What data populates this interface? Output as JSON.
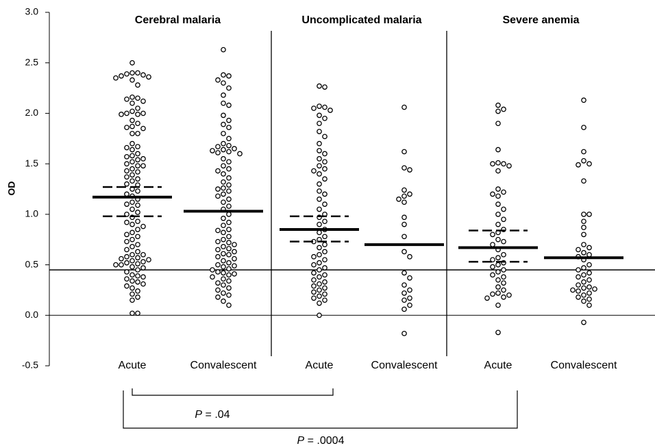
{
  "chart_data": {
    "type": "dot",
    "y_label": "OD",
    "ylim": [
      -0.5,
      3.0
    ],
    "yticks": [
      -0.5,
      {
        "value": 0,
        "label": "0.0"
      },
      0.5,
      {
        "value": 1,
        "label": "1.0"
      },
      1.5,
      {
        "value": 2,
        "label": "2.0"
      },
      2.5,
      {
        "value": 3,
        "label": "3.0"
      }
    ],
    "reference_line": 0.45,
    "panels": [
      {
        "title": "Cerebral malaria",
        "groups": [
          {
            "category": "Acute",
            "center": 1.17,
            "interval": [
              0.98,
              1.27
            ],
            "values": [
              2.5,
              2.4,
              2.4,
              2.39,
              2.38,
              2.37,
              2.36,
              2.35,
              2.33,
              2.28,
              2.16,
              2.15,
              2.14,
              2.12,
              2.1,
              2.05,
              2.02,
              2.0,
              2.0,
              1.99,
              1.99,
              1.93,
              1.9,
              1.87,
              1.86,
              1.85,
              1.8,
              1.8,
              1.7,
              1.67,
              1.66,
              1.64,
              1.6,
              1.58,
              1.57,
              1.55,
              1.54,
              1.52,
              1.5,
              1.48,
              1.48,
              1.45,
              1.43,
              1.42,
              1.39,
              1.37,
              1.35,
              1.33,
              1.3,
              1.29,
              1.25,
              1.23,
              1.2,
              1.18,
              1.15,
              1.12,
              1.1,
              1.09,
              1.05,
              1.02,
              1.0,
              0.97,
              0.93,
              0.92,
              0.9,
              0.88,
              0.85,
              0.82,
              0.8,
              0.78,
              0.75,
              0.73,
              0.7,
              0.68,
              0.65,
              0.63,
              0.6,
              0.6,
              0.58,
              0.57,
              0.56,
              0.55,
              0.54,
              0.53,
              0.52,
              0.51,
              0.5,
              0.5,
              0.48,
              0.47,
              0.45,
              0.43,
              0.4,
              0.39,
              0.38,
              0.36,
              0.34,
              0.33,
              0.31,
              0.29,
              0.27,
              0.24,
              0.21,
              0.18,
              0.15,
              0.02,
              0.02
            ]
          },
          {
            "category": "Convalescent",
            "center": 1.03,
            "values": [
              2.63,
              2.38,
              2.37,
              2.33,
              2.3,
              2.25,
              2.18,
              2.1,
              2.08,
              1.98,
              1.93,
              1.89,
              1.86,
              1.8,
              1.75,
              1.7,
              1.68,
              1.67,
              1.65,
              1.64,
              1.63,
              1.62,
              1.61,
              1.6,
              1.55,
              1.52,
              1.48,
              1.45,
              1.43,
              1.4,
              1.36,
              1.32,
              1.29,
              1.26,
              1.25,
              1.23,
              1.2,
              1.18,
              1.15,
              1.12,
              1.08,
              1.05,
              1.0,
              0.96,
              0.92,
              0.89,
              0.85,
              0.84,
              0.82,
              0.78,
              0.75,
              0.73,
              0.72,
              0.7,
              0.68,
              0.66,
              0.65,
              0.63,
              0.61,
              0.6,
              0.58,
              0.56,
              0.54,
              0.52,
              0.5,
              0.49,
              0.48,
              0.46,
              0.45,
              0.43,
              0.42,
              0.41,
              0.4,
              0.38,
              0.36,
              0.34,
              0.32,
              0.3,
              0.27,
              0.25,
              0.22,
              0.2,
              0.18,
              0.14,
              0.1
            ]
          }
        ]
      },
      {
        "title": "Uncomplicated malaria",
        "groups": [
          {
            "category": "Acute",
            "center": 0.85,
            "interval": [
              0.73,
              0.98
            ],
            "values": [
              2.27,
              2.26,
              2.07,
              2.06,
              2.05,
              2.03,
              1.98,
              1.95,
              1.9,
              1.82,
              1.77,
              1.7,
              1.63,
              1.6,
              1.55,
              1.52,
              1.48,
              1.45,
              1.43,
              1.4,
              1.35,
              1.3,
              1.23,
              1.2,
              1.15,
              1.1,
              1.05,
              1.0,
              0.97,
              0.93,
              0.9,
              0.85,
              0.82,
              0.78,
              0.75,
              0.73,
              0.7,
              0.67,
              0.63,
              0.6,
              0.58,
              0.55,
              0.52,
              0.5,
              0.47,
              0.45,
              0.42,
              0.4,
              0.38,
              0.35,
              0.33,
              0.31,
              0.29,
              0.27,
              0.25,
              0.23,
              0.21,
              0.19,
              0.17,
              0.15,
              0.12,
              0.0
            ]
          },
          {
            "category": "Convalescent",
            "center": 0.7,
            "values": [
              2.06,
              1.62,
              1.46,
              1.44,
              1.24,
              1.2,
              1.18,
              1.15,
              1.12,
              0.97,
              0.9,
              0.78,
              0.63,
              0.58,
              0.42,
              0.37,
              0.3,
              0.25,
              0.22,
              0.17,
              0.15,
              0.1,
              0.06,
              -0.18
            ]
          }
        ]
      },
      {
        "title": "Severe anemia",
        "groups": [
          {
            "category": "Acute",
            "center": 0.67,
            "interval": [
              0.53,
              0.84
            ],
            "values": [
              2.08,
              2.04,
              2.02,
              1.9,
              1.64,
              1.51,
              1.5,
              1.5,
              1.48,
              1.43,
              1.25,
              1.22,
              1.2,
              1.18,
              1.1,
              1.05,
              1.0,
              0.95,
              0.9,
              0.85,
              0.82,
              0.8,
              0.75,
              0.73,
              0.7,
              0.65,
              0.6,
              0.57,
              0.55,
              0.52,
              0.5,
              0.48,
              0.45,
              0.43,
              0.4,
              0.38,
              0.35,
              0.32,
              0.28,
              0.25,
              0.22,
              0.21,
              0.2,
              0.18,
              0.17,
              0.1,
              -0.17
            ]
          },
          {
            "category": "Convalescent",
            "center": 0.57,
            "values": [
              2.13,
              1.86,
              1.62,
              1.53,
              1.5,
              1.49,
              1.33,
              1.0,
              1.0,
              0.93,
              0.87,
              0.8,
              0.7,
              0.67,
              0.65,
              0.62,
              0.6,
              0.58,
              0.55,
              0.5,
              0.47,
              0.45,
              0.42,
              0.4,
              0.38,
              0.35,
              0.33,
              0.3,
              0.28,
              0.27,
              0.26,
              0.25,
              0.24,
              0.22,
              0.2,
              0.18,
              0.16,
              0.14,
              0.1,
              -0.07
            ]
          }
        ]
      }
    ],
    "annotations": [
      {
        "symbol": "P",
        "text": "= .04"
      },
      {
        "symbol": "P",
        "text": "= .0004"
      }
    ]
  }
}
